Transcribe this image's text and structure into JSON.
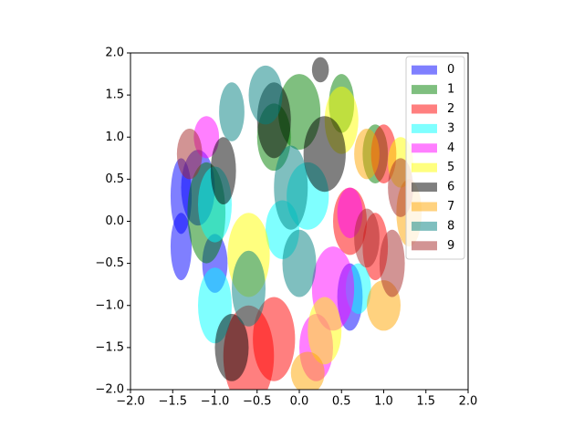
{
  "chart_data": {
    "type": "ellipse",
    "xlim": [
      -2,
      2
    ],
    "ylim": [
      -2,
      2
    ],
    "xticks": [
      {
        "value": -2,
        "label": "−2.0"
      },
      {
        "value": -1.5,
        "label": "−1.5"
      },
      {
        "value": -1,
        "label": "−1.0"
      },
      {
        "value": -0.5,
        "label": "−0.5"
      },
      {
        "value": 0,
        "label": "0.0"
      },
      0.5,
      {
        "value": 1,
        "label": "1.0"
      },
      1.5,
      {
        "value": 2,
        "label": "2.0"
      }
    ],
    "yticks": [
      {
        "value": -2,
        "label": "−2.0"
      },
      {
        "value": -1.5,
        "label": "−1.5"
      },
      {
        "value": -1,
        "label": "−1.0"
      },
      {
        "value": -0.5,
        "label": "−0.5"
      },
      {
        "value": 0,
        "label": "0.0"
      },
      0.5,
      {
        "value": 1,
        "label": "1.0"
      },
      1.5,
      {
        "value": 2,
        "label": "2.0"
      }
    ],
    "alpha": 0.5,
    "legend": "upper right",
    "series": [
      {
        "name": "0",
        "color": "#0000ff",
        "x": [
          -1.4,
          -1.4,
          -1.2,
          0.6,
          -1.0
        ],
        "y": [
          0.3,
          -0.3,
          0.4,
          -0.9,
          -0.5
        ],
        "width": [
          0.25,
          0.25,
          0.4,
          0.3,
          0.3
        ],
        "height": [
          0.9,
          0.8,
          0.9,
          0.8,
          0.7
        ]
      },
      {
        "name": "1",
        "color": "#008000",
        "x": [
          -1.1,
          0.0,
          0.5,
          -0.3,
          0.9
        ],
        "y": [
          0.1,
          1.3,
          1.4,
          1.0,
          0.8
        ],
        "width": [
          0.45,
          0.5,
          0.3,
          0.4,
          0.3
        ],
        "height": [
          1.2,
          0.9,
          0.7,
          0.8,
          0.7
        ]
      },
      {
        "name": "2",
        "color": "#ff0000",
        "x": [
          -0.6,
          -0.3,
          0.6,
          1.0,
          0.9
        ],
        "y": [
          -1.6,
          -1.4,
          0.0,
          0.8,
          -0.3
        ],
        "width": [
          0.6,
          0.5,
          0.4,
          0.3,
          0.3
        ],
        "height": [
          1.2,
          1.0,
          0.8,
          0.7,
          0.8
        ]
      },
      {
        "name": "3",
        "color": "#00ffff",
        "x": [
          -1.0,
          -1.0,
          0.1,
          -0.2,
          0.7
        ],
        "y": [
          0.2,
          -1.0,
          0.3,
          -0.1,
          -0.8
        ],
        "width": [
          0.4,
          0.4,
          0.5,
          0.4,
          0.3
        ],
        "height": [
          0.9,
          0.9,
          0.8,
          0.7,
          0.6
        ]
      },
      {
        "name": "4",
        "color": "#ff00ff",
        "x": [
          0.4,
          0.2,
          -1.1,
          0.6
        ],
        "y": [
          -0.8,
          -1.5,
          1.0,
          0.1
        ],
        "width": [
          0.5,
          0.4,
          0.3,
          0.3
        ],
        "height": [
          1.0,
          0.8,
          0.5,
          0.6
        ]
      },
      {
        "name": "5",
        "color": "#ffff00",
        "x": [
          0.5,
          -0.6,
          1.2,
          0.3
        ],
        "y": [
          1.2,
          -0.4,
          0.7,
          -1.3
        ],
        "width": [
          0.4,
          0.5,
          0.3,
          0.4
        ],
        "height": [
          0.8,
          1.0,
          0.6,
          0.8
        ]
      },
      {
        "name": "6",
        "color": "#000000",
        "x": [
          0.3,
          -0.3,
          -0.8,
          0.25,
          -0.9
        ],
        "y": [
          0.8,
          1.2,
          -1.5,
          1.8,
          0.6
        ],
        "width": [
          0.5,
          0.4,
          0.4,
          0.2,
          0.3
        ],
        "height": [
          0.9,
          0.9,
          0.8,
          0.3,
          0.8
        ]
      },
      {
        "name": "7",
        "color": "#ffa500",
        "x": [
          1.0,
          1.3,
          0.1,
          0.8
        ],
        "y": [
          -1.0,
          0.1,
          -1.8,
          0.8
        ],
        "width": [
          0.4,
          0.3,
          0.4,
          0.3
        ],
        "height": [
          0.6,
          0.8,
          0.5,
          0.6
        ]
      },
      {
        "name": "8",
        "color": "#008080",
        "x": [
          -0.4,
          -0.6,
          -0.1,
          -0.8,
          0.0
        ],
        "y": [
          1.5,
          -0.8,
          0.4,
          1.3,
          -0.5
        ],
        "width": [
          0.4,
          0.4,
          0.4,
          0.3,
          0.4
        ],
        "height": [
          0.7,
          0.9,
          1.0,
          0.7,
          0.8
        ]
      },
      {
        "name": "9",
        "color": "#a52a2a",
        "x": [
          1.1,
          -1.3,
          1.2,
          0.8
        ],
        "y": [
          -0.5,
          0.8,
          0.4,
          -0.2
        ],
        "width": [
          0.3,
          0.3,
          0.3,
          0.3
        ],
        "height": [
          0.8,
          0.6,
          0.7,
          0.7
        ]
      }
    ]
  }
}
